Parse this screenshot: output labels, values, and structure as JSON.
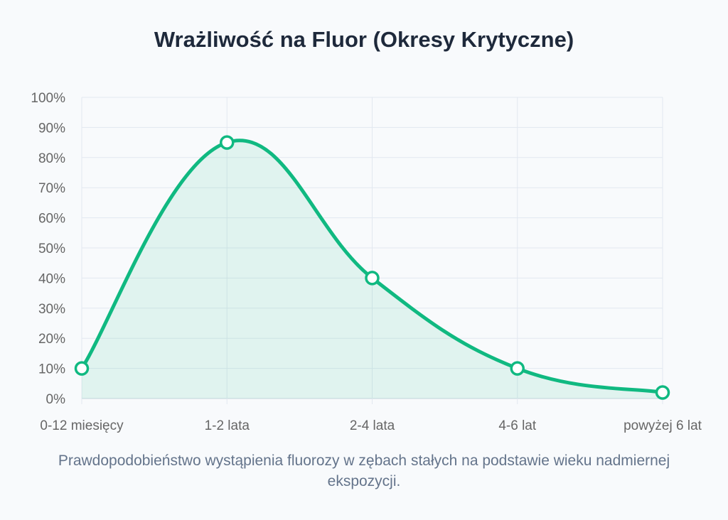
{
  "chart_data": {
    "type": "line",
    "title": "Wrażliwość na Fluor (Okresy Krytyczne)",
    "categories": [
      "0-12 miesięcy",
      "1-2 lata",
      "2-4 lata",
      "4-6 lat",
      "powyżej 6 lat"
    ],
    "series": [
      {
        "name": "Wrażliwość",
        "values": [
          10,
          85,
          40,
          10,
          2
        ]
      }
    ],
    "ylim": [
      0,
      100
    ],
    "yticks": [
      0,
      10,
      20,
      30,
      40,
      50,
      60,
      70,
      80,
      90,
      100
    ],
    "ytick_suffix": "%",
    "grid": true,
    "fill": true,
    "line_color": "#10b981",
    "fill_color": "#10b981",
    "caption": "Prawdopodobieństwo wystąpienia fluorozy w zębach stałych na podstawie wieku nadmiernej ekspozycji."
  }
}
